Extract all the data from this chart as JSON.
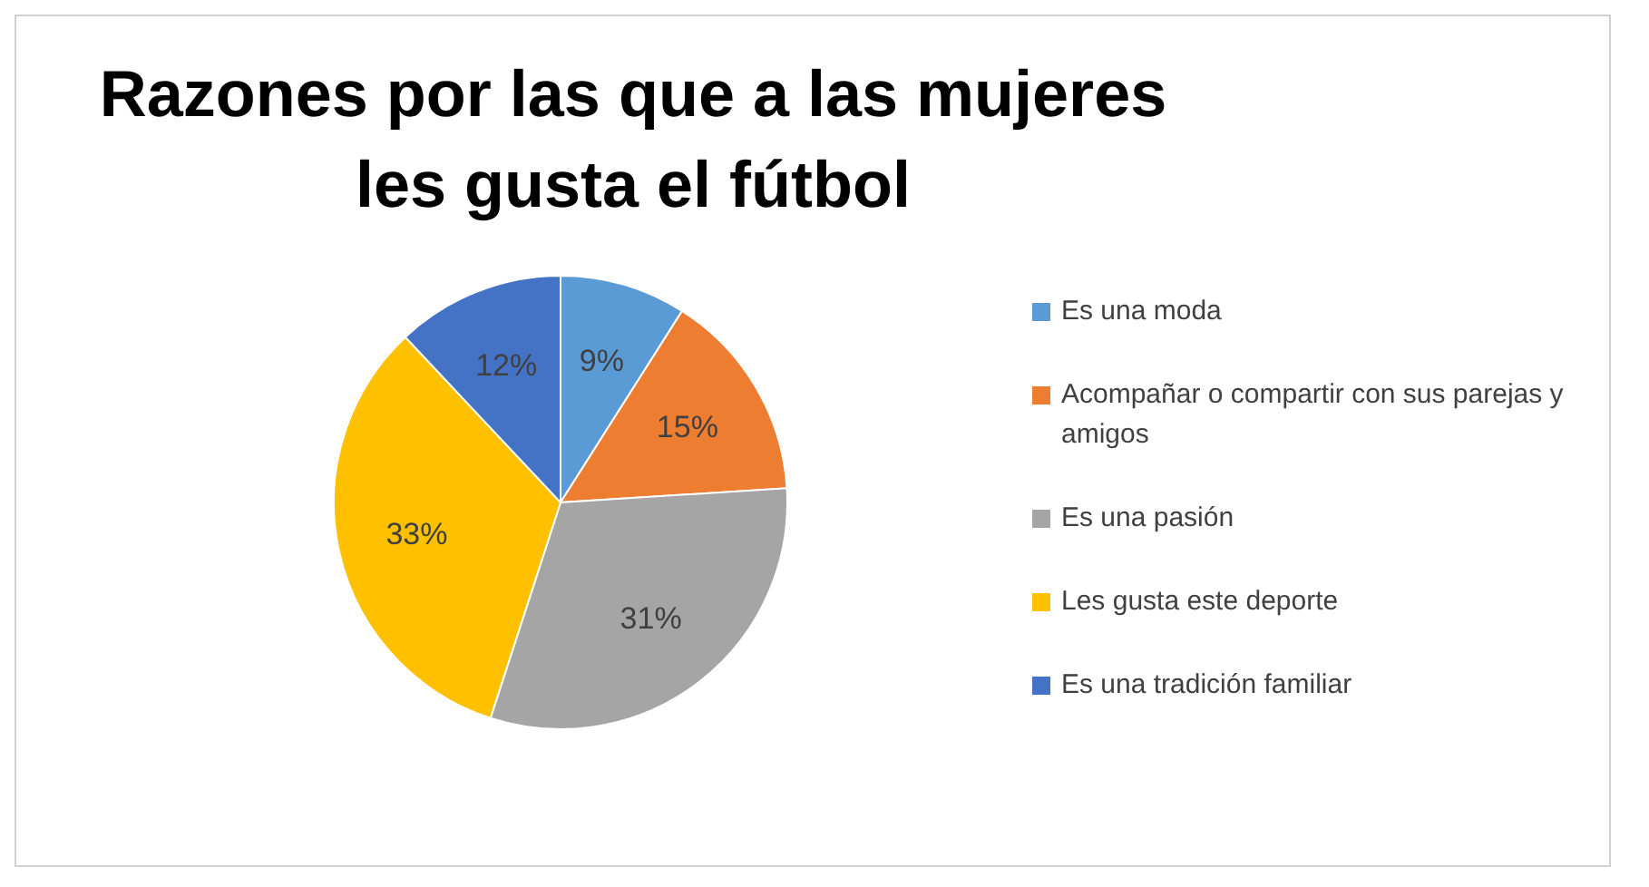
{
  "chart_data": {
    "type": "pie",
    "title": "Razones por las que a las mujeres les gusta el fútbol",
    "categories": [
      "Es una moda",
      "Acompañar o compartir con sus parejas y amigos",
      "Es una pasión",
      "Les gusta este deporte",
      "Es una tradición familiar"
    ],
    "values": [
      9,
      15,
      31,
      33,
      12
    ],
    "colors": [
      "#5b9bd5",
      "#ed7d31",
      "#a5a5a5",
      "#ffc000",
      "#4472c4"
    ],
    "value_labels": [
      "9%",
      "15%",
      "31%",
      "33%",
      "12%"
    ],
    "legend": "right"
  }
}
